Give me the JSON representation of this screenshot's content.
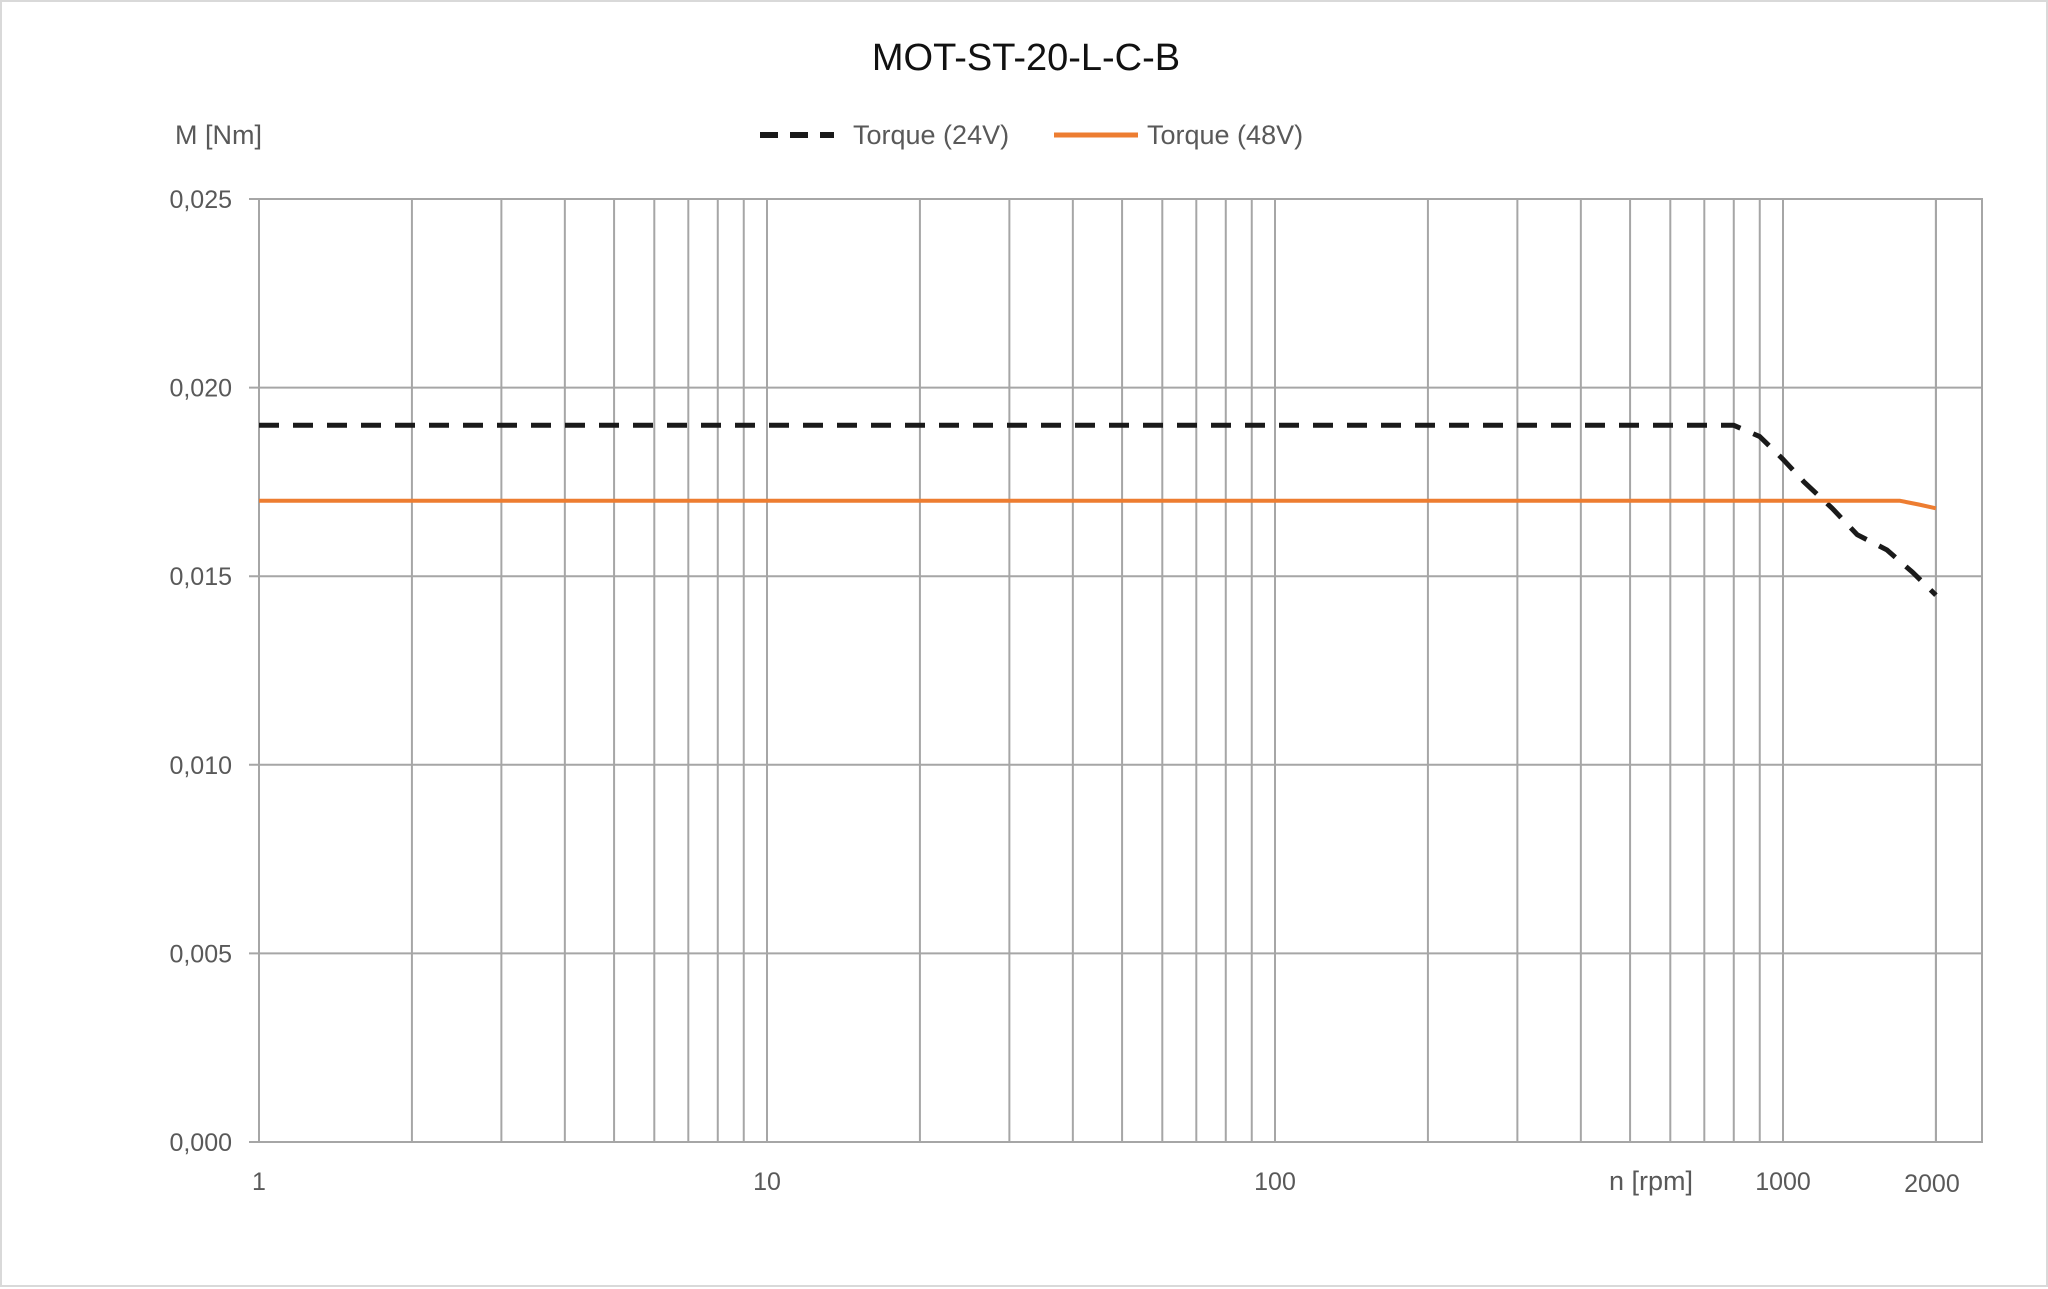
{
  "chart_data": {
    "type": "line",
    "title": "MOT-ST-20-L-C-B",
    "ylabel": "M [Nm]",
    "xlabel": "n [rpm]",
    "x_scale": "log",
    "xlim": [
      1,
      2000
    ],
    "ylim": [
      0,
      0.025
    ],
    "x_ticks": [
      {
        "value": 1,
        "label": "1"
      },
      {
        "value": 10,
        "label": "10"
      },
      {
        "value": 100,
        "label": "100"
      },
      {
        "value": 1000,
        "label": "1000"
      },
      {
        "value": 2000,
        "label": "2000"
      }
    ],
    "y_ticks": [
      {
        "value": 0.0,
        "label": "0,000"
      },
      {
        "value": 0.005,
        "label": "0,005"
      },
      {
        "value": 0.01,
        "label": "0,010"
      },
      {
        "value": 0.015,
        "label": "0,015"
      },
      {
        "value": 0.02,
        "label": "0,020"
      },
      {
        "value": 0.025,
        "label": "0,025"
      }
    ],
    "grid": true,
    "legend_position": "top-center",
    "series": [
      {
        "name": "Torque (24V)",
        "color": "#1a1a1a",
        "style": "dashed",
        "points": [
          [
            1,
            0.019
          ],
          [
            800,
            0.019
          ],
          [
            900,
            0.0187
          ],
          [
            1000,
            0.0181
          ],
          [
            1100,
            0.0175
          ],
          [
            1250,
            0.0168
          ],
          [
            1400,
            0.0161
          ],
          [
            1600,
            0.0157
          ],
          [
            1800,
            0.0151
          ],
          [
            2000,
            0.0145
          ]
        ]
      },
      {
        "name": "Torque (48V)",
        "color": "#ed7d31",
        "style": "solid",
        "points": [
          [
            1,
            0.017
          ],
          [
            1500,
            0.017
          ],
          [
            1700,
            0.017
          ],
          [
            1850,
            0.0169
          ],
          [
            2000,
            0.0168
          ]
        ]
      }
    ]
  }
}
